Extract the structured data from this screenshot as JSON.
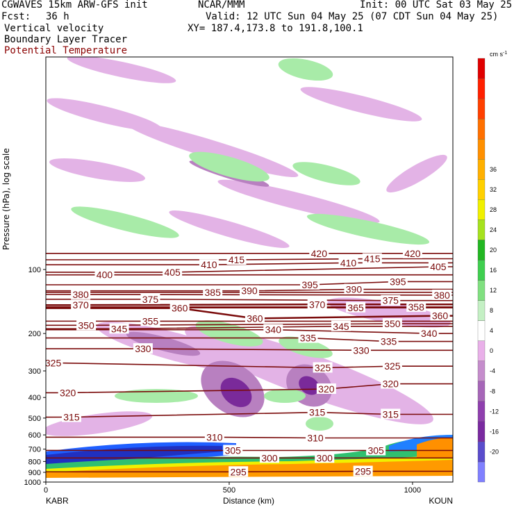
{
  "header": {
    "title_left": "CGWAVES 15km ARW-GFS init",
    "title_center": "NCAR/MMM",
    "init": "Init: 00 UTC Sat 03 May 25",
    "fcst_label": "Fcst:",
    "fcst_value": "36 h",
    "valid": "Valid: 12 UTC Sun 04 May 25 (07 CDT Sun 04 May 25)",
    "field1": "Vertical velocity",
    "xy": "XY= 187.4,173.8 to 191.8,100.1",
    "field2": "Boundary Layer Tracer",
    "field3": "Potential Temperature"
  },
  "colors": {
    "theta": "#7a0a0a",
    "text_red": "#8b0000"
  },
  "chart_data": {
    "type": "heatmap",
    "xlabel": "Distance (km)",
    "ylabel": "Pressure (hPa), log scale",
    "x_ticks": [
      "0",
      "500",
      "1000"
    ],
    "y_ticks": [
      "100",
      "200",
      "300",
      "400",
      "500",
      "600",
      "700",
      "800",
      "900",
      "1000"
    ],
    "xlim": [
      0,
      1110
    ],
    "ylim_hpa": [
      1000,
      10
    ],
    "y_scale": "log",
    "endpoints": {
      "left": "KABR",
      "right": "KOUN"
    },
    "colorbar": {
      "unit": "cm s",
      "unit_exp": "-1",
      "ticks": [
        "36",
        "32",
        "28",
        "24",
        "20",
        "16",
        "12",
        "8",
        "4",
        "0",
        "-4",
        "-8",
        "-12",
        "-16",
        "-20"
      ],
      "colors": [
        "#8080ff",
        "#5a4ccc",
        "#7a2aa0",
        "#8f3fae",
        "#a666b8",
        "#c58dcc",
        "#e9b0e9",
        "#ffffff",
        "#c4f0c4",
        "#80e080",
        "#3fcf4f",
        "#22b722",
        "#a6e21e",
        "#f0f000",
        "#ffd000",
        "#ffb000",
        "#ff9000",
        "#ff7000",
        "#ff4000",
        "#ff2000",
        "#e00000"
      ]
    },
    "theta_labels": [
      {
        "t": "420",
        "x": 745,
        "p": 84
      },
      {
        "t": "420",
        "x": 1000,
        "p": 84
      },
      {
        "t": "415",
        "x": 520,
        "p": 90
      },
      {
        "t": "415",
        "x": 890,
        "p": 89
      },
      {
        "t": "410",
        "x": 445,
        "p": 95
      },
      {
        "t": "410",
        "x": 825,
        "p": 93
      },
      {
        "t": "405",
        "x": 345,
        "p": 103
      },
      {
        "t": "405",
        "x": 1070,
        "p": 97
      },
      {
        "t": "400",
        "x": 160,
        "p": 106
      },
      {
        "t": "395",
        "x": 720,
        "p": 118
      },
      {
        "t": "395",
        "x": 960,
        "p": 114
      },
      {
        "t": "390",
        "x": 555,
        "p": 126
      },
      {
        "t": "390",
        "x": 840,
        "p": 124
      },
      {
        "t": "385",
        "x": 455,
        "p": 128
      },
      {
        "t": "380",
        "x": 95,
        "p": 131
      },
      {
        "t": "380",
        "x": 1080,
        "p": 132
      },
      {
        "t": "375",
        "x": 285,
        "p": 138
      },
      {
        "t": "375",
        "x": 940,
        "p": 140
      },
      {
        "t": "370",
        "x": 95,
        "p": 147
      },
      {
        "t": "370",
        "x": 740,
        "p": 146
      },
      {
        "t": "365",
        "x": 845,
        "p": 151
      },
      {
        "t": "360",
        "x": 365,
        "p": 152
      },
      {
        "t": "358",
        "x": 1010,
        "p": 150
      },
      {
        "t": "360",
        "x": 1075,
        "p": 165
      },
      {
        "t": "360",
        "x": 570,
        "p": 170
      },
      {
        "t": "355",
        "x": 285,
        "p": 175
      },
      {
        "t": "350",
        "x": 110,
        "p": 183
      },
      {
        "t": "350",
        "x": 945,
        "p": 180
      },
      {
        "t": "345",
        "x": 200,
        "p": 190
      },
      {
        "t": "345",
        "x": 805,
        "p": 185
      },
      {
        "t": "340",
        "x": 620,
        "p": 192
      },
      {
        "t": "340",
        "x": 1045,
        "p": 200
      },
      {
        "t": "335",
        "x": 715,
        "p": 210
      },
      {
        "t": "335",
        "x": 935,
        "p": 218
      },
      {
        "t": "330",
        "x": 265,
        "p": 236
      },
      {
        "t": "330",
        "x": 860,
        "p": 240
      },
      {
        "t": "325",
        "x": 20,
        "p": 275
      },
      {
        "t": "325",
        "x": 755,
        "p": 290
      },
      {
        "t": "325",
        "x": 945,
        "p": 285
      },
      {
        "t": "320",
        "x": 60,
        "p": 380
      },
      {
        "t": "320",
        "x": 765,
        "p": 365
      },
      {
        "t": "320",
        "x": 940,
        "p": 345
      },
      {
        "t": "315",
        "x": 70,
        "p": 495
      },
      {
        "t": "315",
        "x": 740,
        "p": 470
      },
      {
        "t": "315",
        "x": 940,
        "p": 480
      },
      {
        "t": "310",
        "x": 460,
        "p": 615
      },
      {
        "t": "310",
        "x": 735,
        "p": 620
      },
      {
        "t": "305",
        "x": 510,
        "p": 710
      },
      {
        "t": "305",
        "x": 900,
        "p": 710
      },
      {
        "t": "300",
        "x": 610,
        "p": 770
      },
      {
        "t": "300",
        "x": 760,
        "p": 770
      },
      {
        "t": "295",
        "x": 525,
        "p": 895
      },
      {
        "t": "295",
        "x": 865,
        "p": 890
      }
    ]
  }
}
